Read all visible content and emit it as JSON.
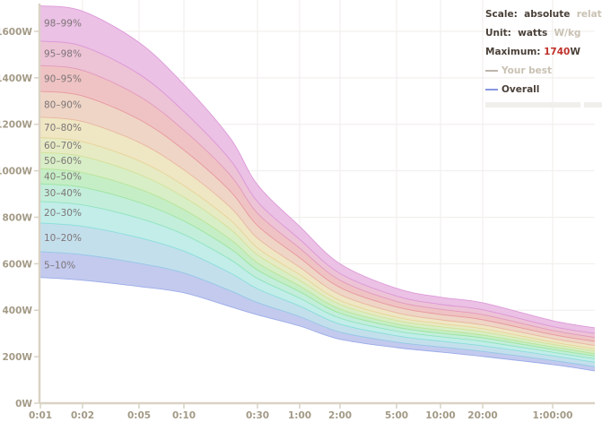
{
  "legend": {
    "scale_label": "Scale:",
    "scale_active": "absolute",
    "scale_inactive": "relative",
    "unit_label": "Unit:",
    "unit_active": "watts",
    "unit_inactive": "W/kg",
    "maximum_label": "Maximum:",
    "maximum_value": "1740",
    "maximum_unit": "W",
    "your_best_label": "Your best",
    "overall_label": "Overall",
    "your_best_color": "#bdb6ad",
    "overall_color": "#8896e0",
    "maximum_color": "#c0302a"
  },
  "chart_data": {
    "type": "area",
    "x_scale": "log",
    "xlim": [
      1,
      7000
    ],
    "ylim": [
      0,
      1740
    ],
    "grid": true,
    "x_ticks": [
      {
        "seconds": 1,
        "label": "0:01"
      },
      {
        "seconds": 2,
        "label": "0:02"
      },
      {
        "seconds": 5,
        "label": "0:05"
      },
      {
        "seconds": 10,
        "label": "0:10"
      },
      {
        "seconds": 30,
        "label": "0:30"
      },
      {
        "seconds": 60,
        "label": "1:00"
      },
      {
        "seconds": 120,
        "label": "2:00"
      },
      {
        "seconds": 300,
        "label": "5:00"
      },
      {
        "seconds": 600,
        "label": "10:00"
      },
      {
        "seconds": 1200,
        "label": "20:00"
      },
      {
        "seconds": 3600,
        "label": "1:00:00"
      }
    ],
    "y_ticks": [
      {
        "value": 0,
        "label": "0W"
      },
      {
        "value": 200,
        "label": "200W"
      },
      {
        "value": 400,
        "label": "400W"
      },
      {
        "value": 600,
        "label": "600W"
      },
      {
        "value": 800,
        "label": "800W"
      },
      {
        "value": 1000,
        "label": "1000W"
      },
      {
        "value": 1200,
        "label": "1200W"
      },
      {
        "value": 1400,
        "label": "1400W"
      },
      {
        "value": 1600,
        "label": "1600W"
      }
    ],
    "x_seconds": [
      1,
      2,
      5,
      10,
      20,
      30,
      60,
      120,
      300,
      600,
      1200,
      3600,
      7000
    ],
    "percentile_curves": [
      {
        "percentile": 5,
        "color": "#8fa2e6",
        "values": [
          541,
          529,
          502,
          475,
          415,
          380,
          332,
          275,
          239,
          220,
          201,
          166,
          139
        ]
      },
      {
        "percentile": 10,
        "color": "#8cc6e4",
        "values": [
          652,
          639,
          602,
          560,
          484,
          433,
          373,
          306,
          263,
          242,
          223,
          184,
          157
        ]
      },
      {
        "percentile": 20,
        "color": "#7fdcd8",
        "values": [
          775,
          761,
          712,
          654,
          560,
          492,
          418,
          340,
          290,
          267,
          247,
          204,
          176
        ]
      },
      {
        "percentile": 30,
        "color": "#86e2b8",
        "values": [
          868,
          853,
          796,
          726,
          618,
          537,
          452,
          366,
          310,
          286,
          266,
          219,
          191
        ]
      },
      {
        "percentile": 40,
        "color": "#93e296",
        "values": [
          944,
          929,
          864,
          784,
          665,
          573,
          480,
          387,
          327,
          301,
          281,
          231,
          203
        ]
      },
      {
        "percentile": 50,
        "color": "#b4e290",
        "values": [
          1009,
          992,
          922,
          833,
          705,
          604,
          504,
          405,
          341,
          314,
          293,
          242,
          213
        ]
      },
      {
        "percentile": 60,
        "color": "#d2de8e",
        "values": [
          1079,
          1062,
          985,
          887,
          749,
          638,
          529,
          425,
          356,
          329,
          307,
          253,
          224
        ]
      },
      {
        "percentile": 70,
        "color": "#e8d08e",
        "values": [
          1143,
          1125,
          1043,
          936,
          788,
          668,
          553,
          442,
          370,
          342,
          320,
          263,
          234
        ]
      },
      {
        "percentile": 80,
        "color": "#e8ae98",
        "values": [
          1231,
          1212,
          1122,
          1004,
          843,
          710,
          585,
          467,
          389,
          359,
          337,
          278,
          248
        ]
      },
      {
        "percentile": 90,
        "color": "#e68e96",
        "values": [
          1342,
          1322,
          1221,
          1089,
          912,
          764,
          626,
          498,
          414,
          382,
          359,
          295,
          266
        ]
      },
      {
        "percentile": 95,
        "color": "#e090b8",
        "values": [
          1453,
          1432,
          1321,
          1174,
          981,
          817,
          667,
          529,
          438,
          404,
          381,
          313,
          283
        ]
      },
      {
        "percentile": 98,
        "color": "#d98ed6",
        "values": [
          1558,
          1536,
          1416,
          1255,
          1046,
          867,
          705,
          558,
          461,
          425,
          402,
          330,
          300
        ]
      },
      {
        "percentile": 99,
        "color": "#d98ed6",
        "values": [
          1710,
          1687,
          1552,
          1371,
          1140,
          940,
          761,
          600,
          494,
          456,
          432,
          355,
          324
        ]
      }
    ],
    "bands": [
      {
        "label": "5–10%",
        "color": "#c3caee"
      },
      {
        "label": "10–20%",
        "color": "#c4dfec"
      },
      {
        "label": "20–30%",
        "color": "#c2ede9"
      },
      {
        "label": "30–40%",
        "color": "#c3eedb"
      },
      {
        "label": "40–50%",
        "color": "#c6eec6"
      },
      {
        "label": "50–60%",
        "color": "#d8eec6"
      },
      {
        "label": "60–70%",
        "color": "#e6ebc4"
      },
      {
        "label": "70–80%",
        "color": "#efe6c4"
      },
      {
        "label": "80–90%",
        "color": "#efd5c6"
      },
      {
        "label": "90–95%",
        "color": "#efc3c4"
      },
      {
        "label": "95–98%",
        "color": "#edc3d6"
      },
      {
        "label": "98–99%",
        "color": "#ebc1e5"
      }
    ]
  }
}
